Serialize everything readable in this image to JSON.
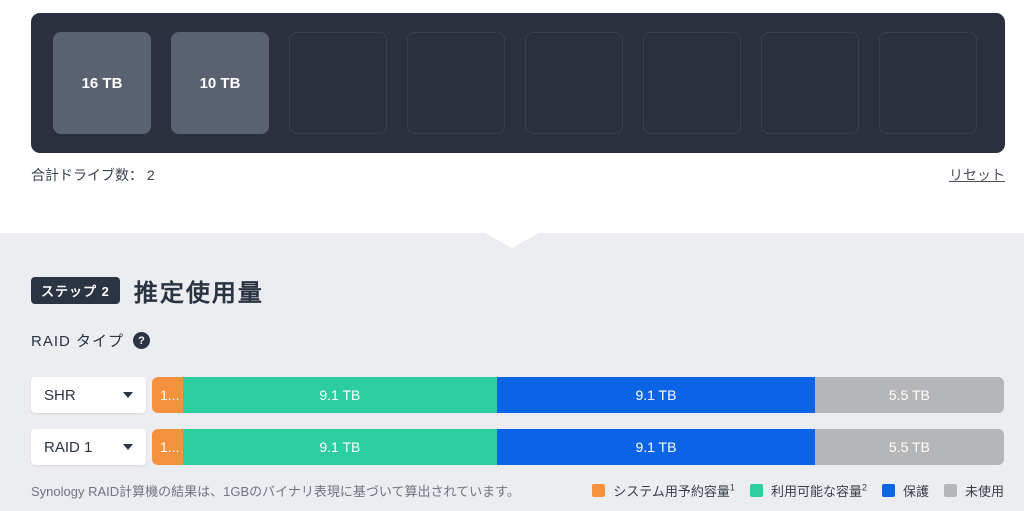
{
  "drive_panel": {
    "slots": [
      {
        "label": "16 TB"
      },
      {
        "label": "10 TB"
      },
      {
        "label": ""
      },
      {
        "label": ""
      },
      {
        "label": ""
      },
      {
        "label": ""
      },
      {
        "label": ""
      },
      {
        "label": ""
      }
    ],
    "total_drives_label": "合計ドライブ数： 2",
    "reset_label": "リセット"
  },
  "step2": {
    "badge": "ステップ 2",
    "title": "推定使用量"
  },
  "raid_type": {
    "label": "RAID タイプ",
    "help": "?"
  },
  "rows": [
    {
      "raid_type": "SHR",
      "segments": [
        {
          "name": "システム用予約容量",
          "label": "1...",
          "color": "#F6923E",
          "width": "3.6%"
        },
        {
          "name": "利用可能な容量",
          "label": "9.1 TB",
          "color": "#2CCD9E",
          "width": "36.9%"
        },
        {
          "name": "保護",
          "label": "9.1 TB",
          "color": "#0B63E6",
          "width": "37.3%"
        },
        {
          "name": "未使用",
          "label": "5.5 TB",
          "color": "#B5B6B8",
          "width": "22.2%"
        }
      ]
    },
    {
      "raid_type": "RAID 1",
      "segments": [
        {
          "name": "システム用予約容量",
          "label": "1...",
          "color": "#F6923E",
          "width": "3.6%"
        },
        {
          "name": "利用可能な容量",
          "label": "9.1 TB",
          "color": "#2CCD9E",
          "width": "36.9%"
        },
        {
          "name": "保護",
          "label": "9.1 TB",
          "color": "#0B63E6",
          "width": "37.3%"
        },
        {
          "name": "未使用",
          "label": "5.5 TB",
          "color": "#B5B6B8",
          "width": "22.2%"
        }
      ]
    }
  ],
  "footer": {
    "note": "Synology RAID計算機の結果は、1GBのバイナリ表現に基づいて算出されています。",
    "legend": [
      {
        "label": "システム用予約容量",
        "sup": "1",
        "color": "#F6923E"
      },
      {
        "label": "利用可能な容量",
        "sup": "2",
        "color": "#2CCD9E"
      },
      {
        "label": "保護",
        "sup": "",
        "color": "#0B63E6"
      },
      {
        "label": "未使用",
        "sup": "",
        "color": "#B5B6B8"
      }
    ]
  }
}
